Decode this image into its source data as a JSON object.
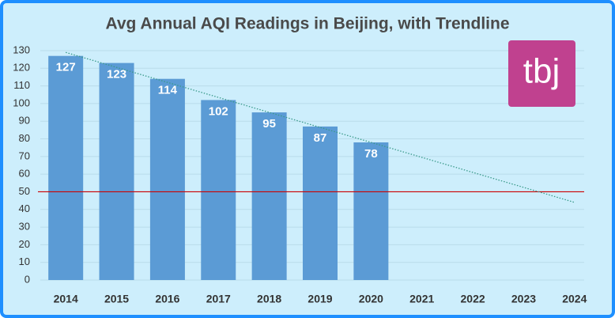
{
  "chart_data": {
    "type": "bar",
    "title": "Avg Annual AQI Readings in Beijing, with Trendline",
    "categories": [
      "2014",
      "2015",
      "2016",
      "2017",
      "2018",
      "2019",
      "2020",
      "2021",
      "2022",
      "2023",
      "2024"
    ],
    "values": [
      127,
      123,
      114,
      102,
      95,
      87,
      78,
      null,
      null,
      null,
      null
    ],
    "color": "#5b9bd5",
    "ylim": [
      0,
      130
    ],
    "yticks": [
      0,
      10,
      20,
      30,
      40,
      50,
      60,
      70,
      80,
      90,
      100,
      110,
      120,
      130
    ],
    "grid": true,
    "trendline": {
      "values": [
        129,
        44
      ],
      "color": "#3a9a8a",
      "style": "dotted"
    },
    "reference_line": {
      "value": 50,
      "color": "#cc0000"
    },
    "logo": {
      "text": "tbj",
      "color": "#c0418f"
    }
  }
}
